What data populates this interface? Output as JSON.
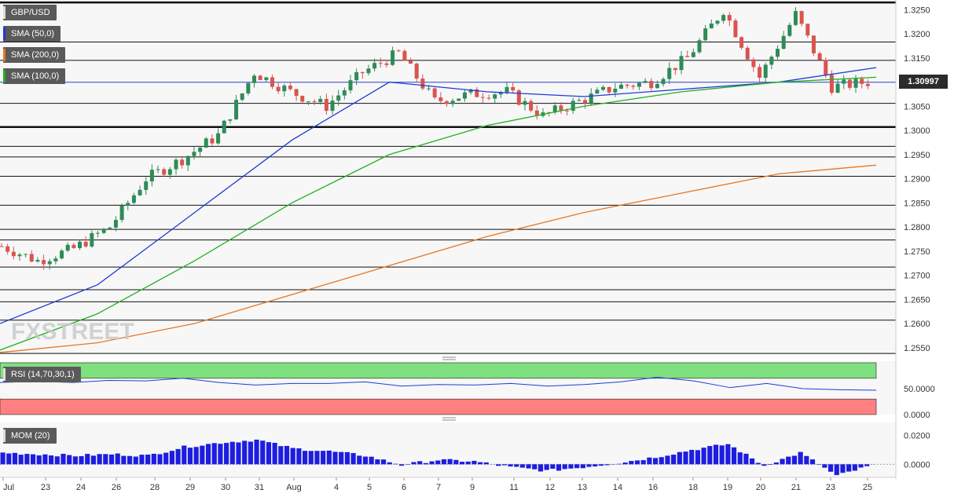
{
  "labels": {
    "pair": "GBP/USD",
    "sma50": "SMA (50,0)",
    "sma200": "SMA (200,0)",
    "sma100": "SMA (100,0)",
    "rsi": "RSI (14,70,30,1)",
    "mom": "MOM (20)",
    "last_price": "1.30997",
    "watermark": "FXSTREET"
  },
  "colors": {
    "bull": "#2e8b57",
    "bear": "#d9544f",
    "sma50": "#1f3bd6",
    "sma100": "#22b122",
    "sma200": "#e87722",
    "rsi_over": "#7fe07f",
    "rsi_under": "#ff8080",
    "mom": "#1d1de0"
  },
  "chart_data": [
    {
      "type": "candlestick",
      "title": "GBP/USD",
      "yticks": [
        "1.3250",
        "1.3200",
        "1.3150",
        "1.3100",
        "1.3050",
        "1.3000",
        "1.2950",
        "1.2900",
        "1.2850",
        "1.2800",
        "1.2750",
        "1.2700",
        "1.2650",
        "1.2600",
        "1.2550"
      ],
      "ylim": [
        1.2535,
        1.327
      ],
      "xticks": [
        "Jul",
        "23",
        "24",
        "26",
        "28",
        "29",
        "30",
        "31",
        "Aug",
        "4",
        "5",
        "6",
        "7",
        "9",
        "11",
        "12",
        "13",
        "14",
        "16",
        "18",
        "19",
        "20",
        "21",
        "23",
        "25"
      ],
      "horizontal_levels": [
        1.3265,
        1.3183,
        1.3145,
        1.3056,
        1.3007,
        1.2967,
        1.2945,
        1.2905,
        1.2845,
        1.2795,
        1.2773,
        1.2717,
        1.267,
        1.2645,
        1.2607,
        1.2538
      ],
      "current_price": 1.30997,
      "candles_approx": [
        {
          "x": "22 Jul",
          "close": 1.276
        },
        {
          "x": "23 Jul",
          "close": 1.273
        },
        {
          "x": "24 Jul",
          "close": 1.2755
        },
        {
          "x": "26 Jul",
          "close": 1.28
        },
        {
          "x": "28 Jul",
          "close": 1.29
        },
        {
          "x": "29 Jul",
          "close": 1.294
        },
        {
          "x": "30 Jul",
          "close": 1.299
        },
        {
          "x": "31 Jul",
          "close": 1.312
        },
        {
          "x": "Aug",
          "close": 1.308
        },
        {
          "x": "4 Aug",
          "close": 1.305
        },
        {
          "x": "5 Aug",
          "close": 1.312
        },
        {
          "x": "6 Aug",
          "close": 1.316
        },
        {
          "x": "7 Aug",
          "close": 1.306
        },
        {
          "x": "9 Aug",
          "close": 1.3075
        },
        {
          "x": "11 Aug",
          "close": 1.308
        },
        {
          "x": "12 Aug",
          "close": 1.303
        },
        {
          "x": "13 Aug",
          "close": 1.306
        },
        {
          "x": "14 Aug",
          "close": 1.309
        },
        {
          "x": "16 Aug",
          "close": 1.31
        },
        {
          "x": "18 Aug",
          "close": 1.315
        },
        {
          "x": "19 Aug",
          "close": 1.325
        },
        {
          "x": "20 Aug",
          "close": 1.311
        },
        {
          "x": "21 Aug",
          "close": 1.324
        },
        {
          "x": "23 Aug",
          "close": 1.309
        },
        {
          "x": "25 Aug",
          "close": 1.31
        }
      ],
      "series": [
        {
          "name": "SMA (50,0)",
          "values": [
            1.26,
            1.268,
            1.283,
            1.298,
            1.31,
            1.308,
            1.307,
            1.3085,
            1.31,
            1.313
          ]
        },
        {
          "name": "SMA (100,0)",
          "values": [
            1.2545,
            1.262,
            1.273,
            1.285,
            1.295,
            1.301,
            1.305,
            1.308,
            1.31,
            1.311
          ]
        },
        {
          "name": "SMA (200,0)",
          "values": [
            1.254,
            1.256,
            1.26,
            1.266,
            1.272,
            1.278,
            1.283,
            1.287,
            1.291,
            1.2928
          ]
        }
      ]
    },
    {
      "type": "line",
      "title": "RSI (14,70,30,1)",
      "yticks": [
        "50.0000",
        "0.0000"
      ],
      "ylim": [
        0,
        100
      ],
      "bands": [
        {
          "name": "overbought",
          "from": 70,
          "to": 100
        },
        {
          "name": "underbought",
          "from": 0,
          "to": 30
        }
      ],
      "values_approx": [
        62,
        64,
        62,
        66,
        65,
        70,
        62,
        57,
        60,
        60,
        63,
        55,
        58,
        57,
        60,
        55,
        58,
        63,
        72,
        65,
        52,
        60,
        50,
        48,
        47
      ]
    },
    {
      "type": "bar",
      "title": "MOM (20)",
      "yticks": [
        "0.0200",
        "0.0000"
      ],
      "ylim": [
        -0.008,
        0.028
      ],
      "values_approx": [
        0.008,
        0.007,
        0.006,
        0.007,
        0.006,
        0.012,
        0.015,
        0.017,
        0.011,
        0.009,
        0.006,
        -0.0005,
        0.003,
        0.002,
        -0.002,
        -0.0045,
        -0.002,
        0.001,
        0.005,
        0.01,
        0.014,
        -0.001,
        0.008,
        -0.008,
        -0.0005
      ]
    }
  ]
}
